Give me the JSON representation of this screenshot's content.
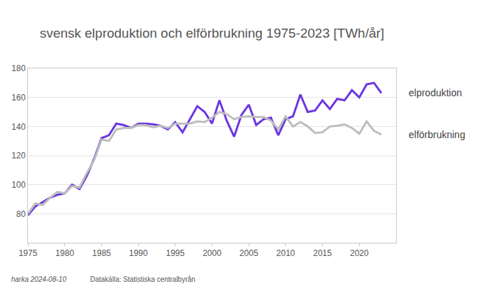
{
  "chart_data": {
    "type": "line",
    "title": "svensk elproduktion och elförbrukning 1975-2023 [TWh/år]",
    "x": [
      1975,
      1976,
      1977,
      1978,
      1979,
      1980,
      1981,
      1982,
      1983,
      1984,
      1985,
      1986,
      1987,
      1988,
      1989,
      1990,
      1991,
      1992,
      1993,
      1994,
      1995,
      1996,
      1997,
      1998,
      1999,
      2000,
      2001,
      2002,
      2003,
      2004,
      2005,
      2006,
      2007,
      2008,
      2009,
      2010,
      2011,
      2012,
      2013,
      2014,
      2015,
      2016,
      2017,
      2018,
      2019,
      2020,
      2021,
      2022,
      2023
    ],
    "series": [
      {
        "name": "elproduktion",
        "color": "#6a35e0",
        "values": [
          79,
          85,
          88,
          91,
          93,
          94,
          100,
          97,
          106,
          118,
          132,
          134,
          142,
          141,
          139,
          142,
          142,
          141.5,
          140.5,
          138,
          143,
          136,
          145,
          154,
          150,
          142,
          158,
          144,
          133,
          148,
          155,
          141,
          145,
          146,
          134,
          145,
          147,
          162,
          150,
          151,
          158,
          152,
          159,
          158,
          165,
          160,
          169,
          170,
          163
        ]
      },
      {
        "name": "elförbrukning",
        "color": "#bdbdbd",
        "values": [
          80,
          87,
          86,
          91,
          95,
          94,
          99,
          98,
          108,
          117,
          131,
          130,
          138,
          139,
          139,
          141,
          141,
          139.5,
          140.5,
          139,
          142,
          142,
          142,
          143.5,
          143,
          146,
          150,
          148.5,
          145,
          146.5,
          147,
          146.5,
          146.5,
          144,
          138,
          147,
          140,
          143,
          140,
          135.5,
          136,
          140,
          140.5,
          141.5,
          139,
          135,
          143.5,
          137,
          134.5
        ]
      }
    ],
    "xlim": [
      1975,
      2025
    ],
    "xticks": [
      1975,
      1980,
      1985,
      1990,
      1995,
      2000,
      2005,
      2010,
      2015,
      2020
    ],
    "ylim": [
      60,
      180
    ],
    "yticks": [
      80,
      100,
      120,
      140,
      160,
      180
    ],
    "grid": true,
    "annotations": [
      "harka 2024-08-10",
      "Datakälla: Statistiska centralbyrån"
    ]
  }
}
